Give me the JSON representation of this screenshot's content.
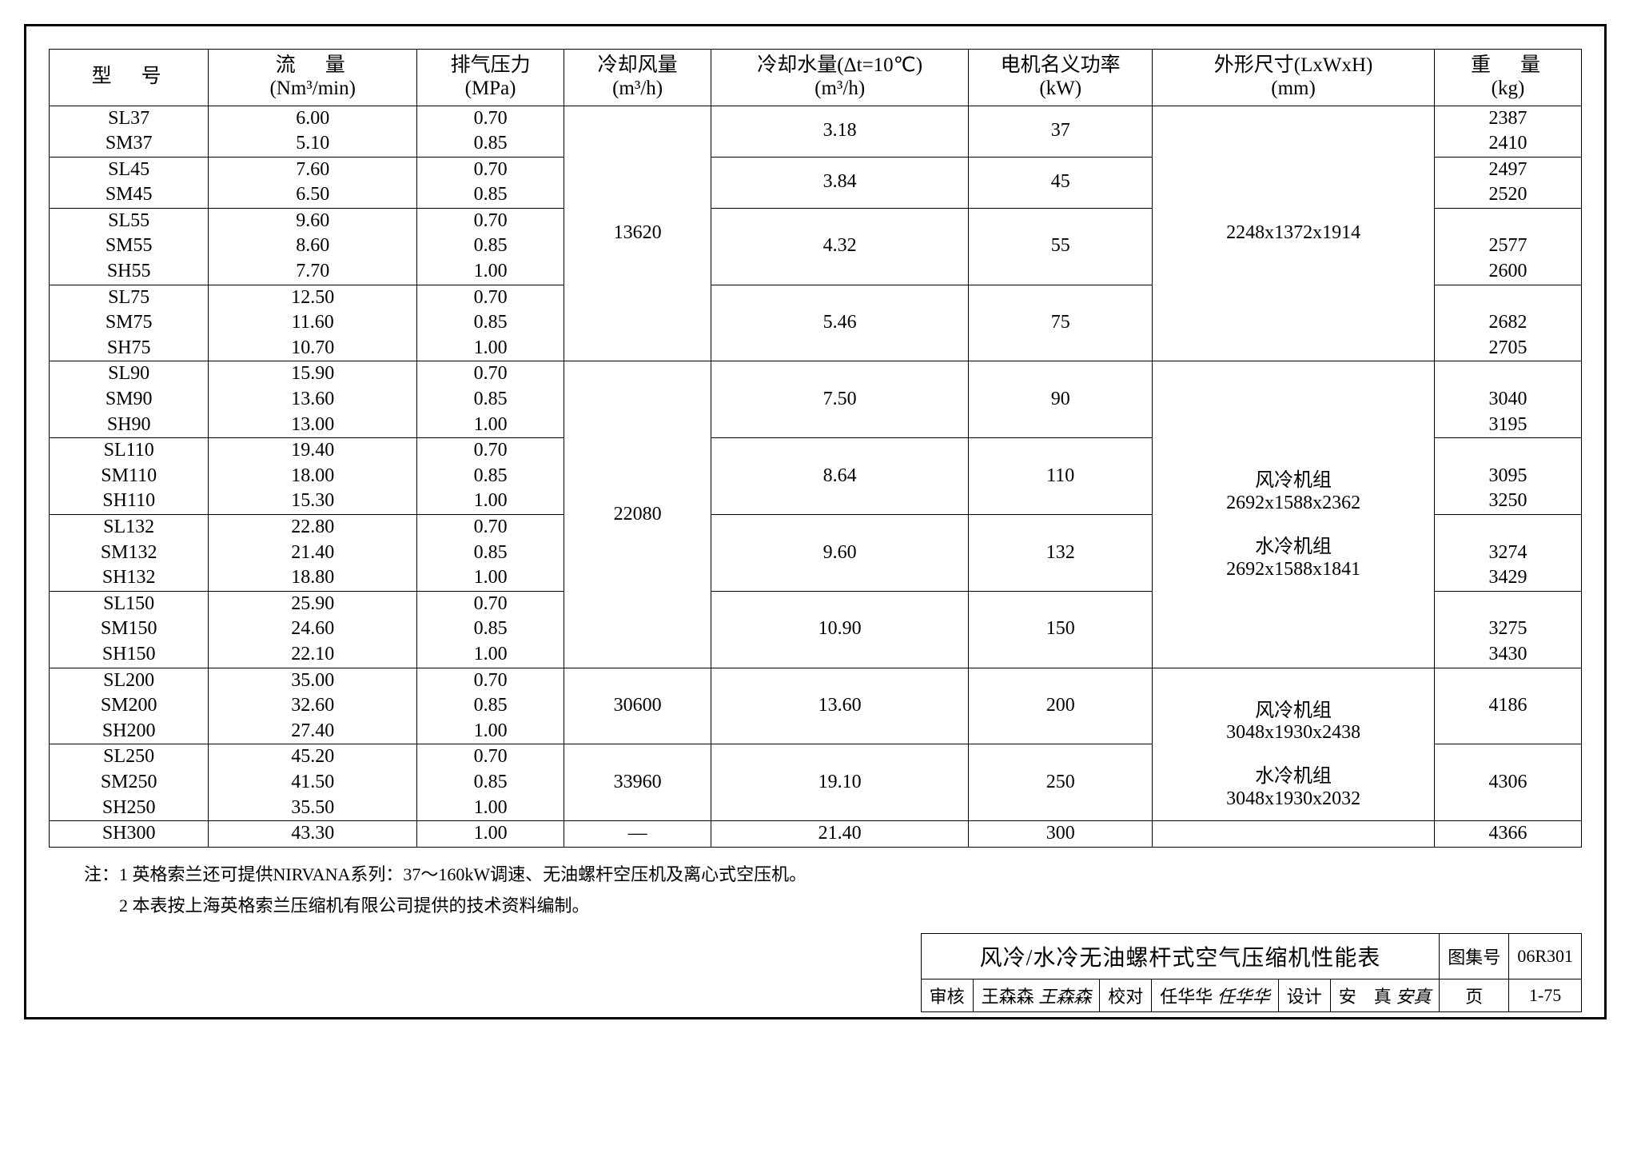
{
  "columns": {
    "model": "型　号",
    "flow": "流　量",
    "flow_unit": "(Nm³/min)",
    "pressure": "排气压力",
    "pressure_unit": "(MPa)",
    "air": "冷却风量",
    "air_unit": "(m³/h)",
    "water": "冷却水量(Δt=10℃)",
    "water_unit": "(m³/h)",
    "power": "电机名义功率",
    "power_unit": "(kW)",
    "dims": "外形尺寸(LxWxH)",
    "dims_unit": "(mm)",
    "weight": "重　量",
    "weight_unit": "(kg)"
  },
  "col_widths": [
    "130",
    "170",
    "120",
    "120",
    "210",
    "150",
    "230",
    "120"
  ],
  "groups": [
    {
      "models": [
        "SL37",
        "SM37"
      ],
      "flows": [
        "6.00",
        "5.10"
      ],
      "pressures": [
        "0.70",
        "0.85"
      ],
      "air": "13620",
      "air_span": 10,
      "air_first": true,
      "water": "3.18",
      "power": "37",
      "dims": [
        "2248x1372x1914"
      ],
      "dims_span": 10,
      "dims_first": true,
      "weights": [
        "2387",
        "2410"
      ]
    },
    {
      "models": [
        "SL45",
        "SM45"
      ],
      "flows": [
        "7.60",
        "6.50"
      ],
      "pressures": [
        "0.70",
        "0.85"
      ],
      "water": "3.84",
      "power": "45",
      "weights": [
        "2497",
        "2520"
      ]
    },
    {
      "models": [
        "SL55",
        "SM55",
        "SH55"
      ],
      "flows": [
        "9.60",
        "8.60",
        "7.70"
      ],
      "pressures": [
        "0.70",
        "0.85",
        "1.00"
      ],
      "water": "4.32",
      "power": "55",
      "weights": [
        "",
        "2577",
        "2600"
      ]
    },
    {
      "models": [
        "SL75",
        "SM75",
        "SH75"
      ],
      "flows": [
        "12.50",
        "11.60",
        "10.70"
      ],
      "pressures": [
        "0.70",
        "0.85",
        "1.00"
      ],
      "water": "5.46",
      "power": "75",
      "weights": [
        "",
        "2682",
        "2705"
      ]
    },
    {
      "models": [
        "SL90",
        "SM90",
        "SH90"
      ],
      "flows": [
        "15.90",
        "13.60",
        "13.00"
      ],
      "pressures": [
        "0.70",
        "0.85",
        "1.00"
      ],
      "air": "22080",
      "air_span": 12,
      "air_first": true,
      "water": "7.50",
      "power": "90",
      "dims": [
        "",
        "风冷机组",
        "2692x1588x2362",
        "",
        "水冷机组",
        "2692x1588x1841"
      ],
      "dims_span": 12,
      "dims_first": true,
      "dims_multiline": true,
      "weights": [
        "",
        "3040",
        "3195"
      ]
    },
    {
      "models": [
        "SL110",
        "SM110",
        "SH110"
      ],
      "flows": [
        "19.40",
        "18.00",
        "15.30"
      ],
      "pressures": [
        "0.70",
        "0.85",
        "1.00"
      ],
      "water": "8.64",
      "power": "110",
      "weights": [
        "",
        "3095",
        "3250"
      ]
    },
    {
      "models": [
        "SL132",
        "SM132",
        "SH132"
      ],
      "flows": [
        "22.80",
        "21.40",
        "18.80"
      ],
      "pressures": [
        "0.70",
        "0.85",
        "1.00"
      ],
      "water": "9.60",
      "power": "132",
      "weights": [
        "",
        "3274",
        "3429"
      ]
    },
    {
      "models": [
        "SL150",
        "SM150",
        "SH150"
      ],
      "flows": [
        "25.90",
        "24.60",
        "22.10"
      ],
      "pressures": [
        "0.70",
        "0.85",
        "1.00"
      ],
      "water": "10.90",
      "power": "150",
      "weights": [
        "",
        "3275",
        "3430"
      ]
    },
    {
      "models": [
        "SM200",
        "SH200",
        "SL200"
      ],
      "real_models": [
        "SL200",
        "SM200",
        "SH200"
      ],
      "flows": [
        "35.00",
        "32.60",
        "27.40"
      ],
      "pressures": [
        "0.70",
        "0.85",
        "1.00"
      ],
      "air": "30600",
      "air_span": 3,
      "air_first": true,
      "water": "13.60",
      "power": "200",
      "dims": [
        "",
        "风冷机组",
        "3048x1930x2438",
        "",
        "水冷机组",
        "3048x1930x2032"
      ],
      "dims_span": 6,
      "dims_first": true,
      "dims_multiline": true,
      "weights": [
        "",
        "4186",
        ""
      ]
    },
    {
      "models": [
        "SL250",
        "SM250",
        "SH250"
      ],
      "flows": [
        "45.20",
        "41.50",
        "35.50"
      ],
      "pressures": [
        "0.70",
        "0.85",
        "1.00"
      ],
      "air": "33960",
      "air_span": 3,
      "air_first": true,
      "water": "19.10",
      "power": "250",
      "weights": [
        "",
        "4306",
        ""
      ]
    },
    {
      "models": [
        "SH300"
      ],
      "flows": [
        "43.30"
      ],
      "pressures": [
        "1.00"
      ],
      "air": "—",
      "air_span": 1,
      "air_first": true,
      "water": "21.40",
      "power": "300",
      "dims": [
        ""
      ],
      "dims_span": 1,
      "dims_first": true,
      "weights": [
        "4366"
      ]
    }
  ],
  "notes": {
    "n1": "注：1 英格索兰还可提供NIRVANA系列：37～160kW调速、无油螺杆空压机及离心式空压机。",
    "n2": "　　2 本表按上海英格索兰压缩机有限公司提供的技术资料编制。"
  },
  "titleblock": {
    "title": "风冷/水冷无油螺杆式空气压缩机性能表",
    "atlas_label": "图集号",
    "atlas_no": "06R301",
    "review_label": "审核",
    "review_name": "王森森",
    "review_sig": "王森森",
    "check_label": "校对",
    "check_name": "任华华",
    "check_sig": "任华华",
    "design_label": "设计",
    "design_name": "安　真",
    "design_sig": "安真",
    "page_label": "页",
    "page_no": "1-75"
  }
}
